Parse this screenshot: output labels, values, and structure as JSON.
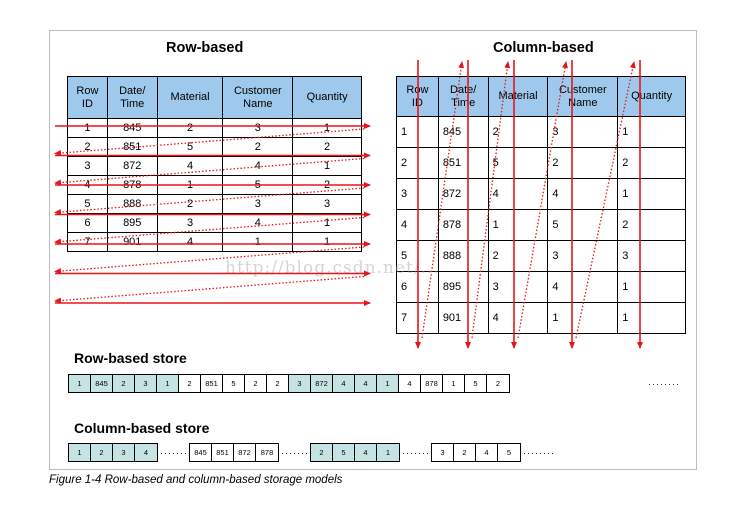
{
  "row_title": "Row-based",
  "col_title": "Column-based",
  "headers": [
    "Row\nID",
    "Date/\nTime",
    "Material",
    "Customer\nName",
    "Quantity"
  ],
  "rows": [
    [
      "1",
      "845",
      "2",
      "3",
      "1"
    ],
    [
      "2",
      "851",
      "5",
      "2",
      "2"
    ],
    [
      "3",
      "872",
      "4",
      "4",
      "1"
    ],
    [
      "4",
      "878",
      "1",
      "5",
      "2"
    ],
    [
      "5",
      "888",
      "2",
      "3",
      "3"
    ],
    [
      "6",
      "895",
      "3",
      "4",
      "1"
    ],
    [
      "7",
      "901",
      "4",
      "1",
      "1"
    ]
  ],
  "row_store_label": "Row-based store",
  "row_store": [
    {
      "v": "1",
      "hl": true
    },
    {
      "v": "845",
      "hl": true
    },
    {
      "v": "2",
      "hl": true
    },
    {
      "v": "3",
      "hl": true
    },
    {
      "v": "1",
      "hl": true
    },
    {
      "v": "2",
      "hl": false
    },
    {
      "v": "851",
      "hl": false
    },
    {
      "v": "5",
      "hl": false
    },
    {
      "v": "2",
      "hl": false
    },
    {
      "v": "2",
      "hl": false
    },
    {
      "v": "3",
      "hl": true
    },
    {
      "v": "872",
      "hl": true
    },
    {
      "v": "4",
      "hl": true
    },
    {
      "v": "4",
      "hl": true
    },
    {
      "v": "1",
      "hl": true
    },
    {
      "v": "4",
      "hl": false
    },
    {
      "v": "878",
      "hl": false
    },
    {
      "v": "1",
      "hl": false
    },
    {
      "v": "5",
      "hl": false
    },
    {
      "v": "2",
      "hl": false
    }
  ],
  "col_store_label": "Column-based store",
  "col_store_groups": [
    {
      "hl": true,
      "values": [
        "1",
        "2",
        "3",
        "4"
      ]
    },
    {
      "hl": false,
      "values": [
        "845",
        "851",
        "872",
        "878"
      ]
    },
    {
      "hl": true,
      "values": [
        "2",
        "5",
        "4",
        "1"
      ]
    },
    {
      "hl": false,
      "values": [
        "3",
        "2",
        "4",
        "5"
      ]
    }
  ],
  "ellipsis": "········",
  "caption": "Figure 1-4   Row-based and column-based storage models",
  "watermark": "http://blog.csdn.net/...",
  "colors": {
    "header": "#9ec9ec",
    "arrow": "#e8141b",
    "highlight": "#c6e3e3"
  }
}
